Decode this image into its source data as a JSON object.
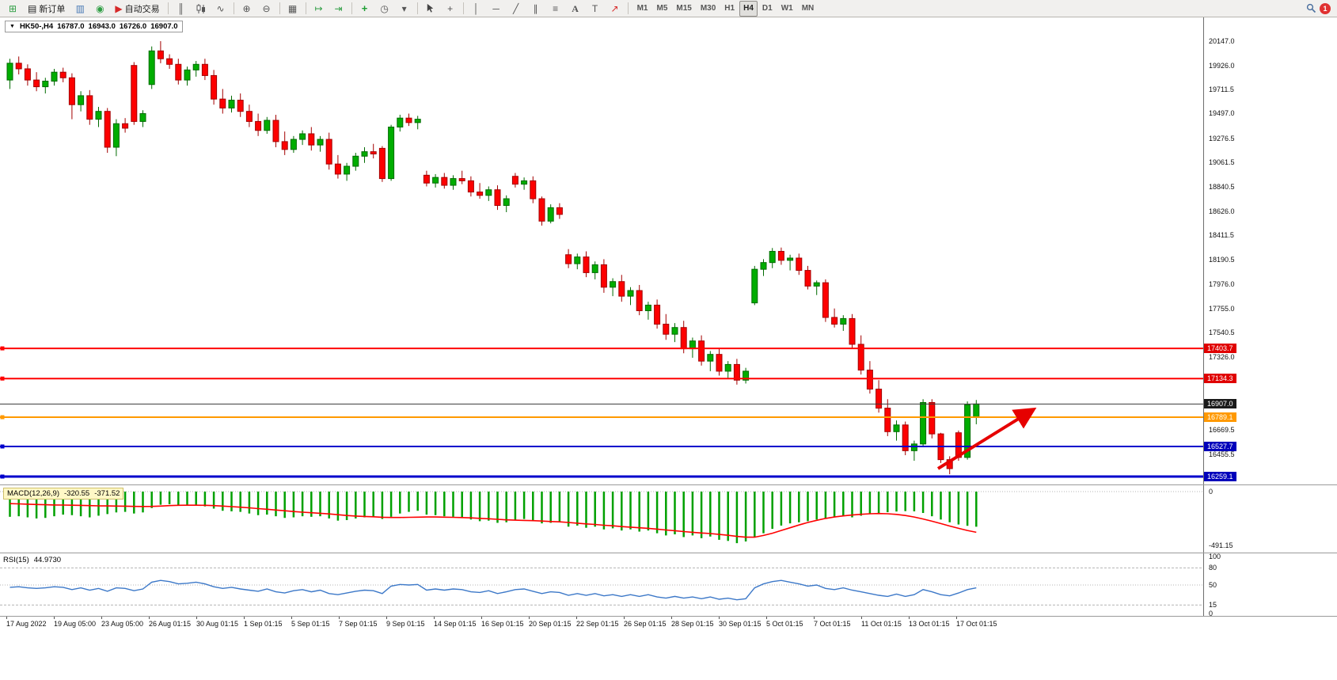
{
  "toolbar": {
    "new_order": "新订单",
    "auto_trading": "自动交易",
    "timeframes": [
      "M1",
      "M5",
      "M15",
      "M30",
      "H1",
      "H4",
      "D1",
      "W1",
      "MN"
    ],
    "active_timeframe": "H4",
    "notification_badge": "1"
  },
  "icons": {
    "chart_expand": "▼",
    "new_chart": "⊞",
    "new_order_doc": "▤",
    "charts": "▥",
    "market_watch": "◉",
    "auto_trading_play": "▶",
    "chart_bars": "║",
    "chart_line": "∿",
    "zoom_in": "⊕",
    "zoom_out": "⊖",
    "tile_windows": "▦",
    "auto_scroll": "↦",
    "chart_shift": "⇥",
    "indicators_plus": "+",
    "period": "◷",
    "template_dropdown": "▾",
    "crosshair": "+",
    "vertical_line": "│",
    "horizontal_line": "─",
    "trendline": "╱",
    "channel": "∥",
    "fibonacci": "≡",
    "text": "A",
    "text_label": "T",
    "arrows": "↗"
  },
  "chart_header": {
    "symbol": "HK50-,H4",
    "open": "16787.0",
    "high": "16943.0",
    "low": "16726.0",
    "close": "16907.0"
  },
  "indicators": {
    "macd": {
      "name": "MACD(12,26,9)",
      "value_main": "-320.55",
      "value_signal": "-371.52",
      "scale_top": "0",
      "scale_bottom": "-491.15"
    },
    "rsi": {
      "name": "RSI(15)",
      "value": "44.9730",
      "scale": [
        100,
        80,
        50,
        15,
        0
      ]
    }
  },
  "price_axis": {
    "labels": [
      20147.0,
      19926.0,
      19711.5,
      19497.0,
      19276.5,
      19061.5,
      18840.5,
      18626.0,
      18411.5,
      18190.5,
      17976.0,
      17755.0,
      17540.5,
      17326.0,
      16669.5,
      16455.5
    ],
    "badges": [
      {
        "value": 17403.7,
        "color": "#e00000"
      },
      {
        "value": 17134.3,
        "color": "#e00000"
      },
      {
        "value": 16907.0,
        "color": "#1a1a1a"
      },
      {
        "value": 16789.1,
        "color": "#ff9900"
      },
      {
        "value": 16527.7,
        "color": "#0000bb"
      },
      {
        "value": 16259.1,
        "color": "#0000bb"
      }
    ]
  },
  "time_axis": [
    "17 Aug 2022",
    "19 Aug 05:00",
    "23 Aug 05:00",
    "26 Aug 01:15",
    "30 Aug 01:15",
    "1 Sep 01:15",
    "5 Sep 01:15",
    "7 Sep 01:15",
    "9 Sep 01:15",
    "14 Sep 01:15",
    "16 Sep 01:15",
    "20 Sep 01:15",
    "22 Sep 01:15",
    "26 Sep 01:15",
    "28 Sep 01:15",
    "30 Sep 01:15",
    "5 Oct 01:15",
    "7 Oct 01:15",
    "11 Oct 01:15",
    "13 Oct 01:15",
    "17 Oct 01:15"
  ],
  "chart_data": {
    "type": "candlestick",
    "symbol": "HK50-",
    "timeframe": "H4",
    "price_range": [
      16217,
      20350
    ],
    "colors": {
      "up_fill": "#00ad00",
      "up_border": "#006b00",
      "down_fill": "#fd0000",
      "down_border": "#a30000",
      "macd_histogram": "#00a000",
      "macd_signal": "#ff0000",
      "rsi_line": "#3c78c8",
      "level_line": "#b4b4b4",
      "current_price_line": "#3a3a3a",
      "trend_arrow": "#e60000"
    },
    "candles": [
      [
        19800,
        19990,
        19720,
        19950
      ],
      [
        19950,
        20010,
        19850,
        19900
      ],
      [
        19900,
        19940,
        19750,
        19800
      ],
      [
        19800,
        19870,
        19700,
        19740
      ],
      [
        19740,
        19820,
        19680,
        19790
      ],
      [
        19790,
        19900,
        19750,
        19870
      ],
      [
        19870,
        19910,
        19780,
        19820
      ],
      [
        19820,
        19860,
        19450,
        19580
      ],
      [
        19580,
        19700,
        19520,
        19660
      ],
      [
        19660,
        19710,
        19400,
        19450
      ],
      [
        19450,
        19560,
        19380,
        19520
      ],
      [
        19520,
        19550,
        19150,
        19200
      ],
      [
        19200,
        19450,
        19120,
        19410
      ],
      [
        19410,
        19460,
        19330,
        19370
      ],
      [
        19930,
        19960,
        19400,
        19430
      ],
      [
        19430,
        19530,
        19380,
        19500
      ],
      [
        19760,
        20100,
        19720,
        20060
      ],
      [
        20060,
        20147,
        19950,
        19990
      ],
      [
        19990,
        20030,
        19900,
        19940
      ],
      [
        19940,
        19990,
        19760,
        19800
      ],
      [
        19800,
        19920,
        19750,
        19890
      ],
      [
        19890,
        19970,
        19830,
        19940
      ],
      [
        19940,
        19990,
        19800,
        19840
      ],
      [
        19840,
        19890,
        19580,
        19630
      ],
      [
        19630,
        19720,
        19500,
        19550
      ],
      [
        19550,
        19660,
        19510,
        19620
      ],
      [
        19620,
        19680,
        19470,
        19520
      ],
      [
        19520,
        19580,
        19380,
        19430
      ],
      [
        19430,
        19500,
        19300,
        19350
      ],
      [
        19350,
        19470,
        19320,
        19440
      ],
      [
        19440,
        19490,
        19200,
        19250
      ],
      [
        19250,
        19340,
        19130,
        19180
      ],
      [
        19180,
        19300,
        19150,
        19270
      ],
      [
        19270,
        19350,
        19220,
        19320
      ],
      [
        19320,
        19380,
        19170,
        19220
      ],
      [
        19220,
        19300,
        19160,
        19270
      ],
      [
        19270,
        19330,
        19000,
        19050
      ],
      [
        19050,
        19130,
        18920,
        18960
      ],
      [
        18960,
        19060,
        18900,
        19030
      ],
      [
        19030,
        19150,
        18990,
        19120
      ],
      [
        19120,
        19200,
        19060,
        19160
      ],
      [
        19160,
        19230,
        19100,
        19140
      ],
      [
        19190,
        19210,
        18890,
        18920
      ],
      [
        18920,
        19400,
        18900,
        19380
      ],
      [
        19380,
        19490,
        19340,
        19460
      ],
      [
        19460,
        19500,
        19390,
        19420
      ],
      [
        19420,
        19480,
        19360,
        19450
      ],
      [
        18950,
        18990,
        18850,
        18880
      ],
      [
        18880,
        18960,
        18840,
        18930
      ],
      [
        18930,
        18970,
        18830,
        18860
      ],
      [
        18860,
        18950,
        18820,
        18920
      ],
      [
        18920,
        18990,
        18870,
        18900
      ],
      [
        18900,
        18940,
        18760,
        18800
      ],
      [
        18800,
        18880,
        18740,
        18770
      ],
      [
        18770,
        18850,
        18720,
        18820
      ],
      [
        18820,
        18860,
        18640,
        18680
      ],
      [
        18680,
        18770,
        18620,
        18740
      ],
      [
        18940,
        18970,
        18840,
        18870
      ],
      [
        18870,
        18930,
        18820,
        18900
      ],
      [
        18900,
        18940,
        18700,
        18740
      ],
      [
        18740,
        18760,
        18500,
        18540
      ],
      [
        18540,
        18690,
        18520,
        18660
      ],
      [
        18660,
        18700,
        18560,
        18600
      ],
      [
        18240,
        18290,
        18120,
        18160
      ],
      [
        18160,
        18250,
        18110,
        18220
      ],
      [
        18220,
        18270,
        18040,
        18080
      ],
      [
        18080,
        18180,
        18020,
        18150
      ],
      [
        18150,
        18200,
        17900,
        17950
      ],
      [
        17950,
        18030,
        17870,
        18000
      ],
      [
        18000,
        18060,
        17820,
        17870
      ],
      [
        17870,
        17950,
        17790,
        17920
      ],
      [
        17920,
        17970,
        17700,
        17740
      ],
      [
        17740,
        17820,
        17660,
        17790
      ],
      [
        17790,
        17840,
        17580,
        17620
      ],
      [
        17620,
        17710,
        17480,
        17530
      ],
      [
        17530,
        17630,
        17460,
        17590
      ],
      [
        17590,
        17650,
        17360,
        17400
      ],
      [
        17400,
        17500,
        17320,
        17470
      ],
      [
        17470,
        17520,
        17250,
        17290
      ],
      [
        17290,
        17380,
        17200,
        17350
      ],
      [
        17350,
        17400,
        17160,
        17200
      ],
      [
        17200,
        17290,
        17140,
        17260
      ],
      [
        17260,
        17310,
        17080,
        17120
      ],
      [
        17120,
        17230,
        17090,
        17200
      ],
      [
        17810,
        18140,
        17790,
        18110
      ],
      [
        18110,
        18200,
        18050,
        18170
      ],
      [
        18170,
        18300,
        18120,
        18270
      ],
      [
        18270,
        18304,
        18150,
        18190
      ],
      [
        18190,
        18240,
        18100,
        18210
      ],
      [
        18210,
        18250,
        18060,
        18100
      ],
      [
        18100,
        18140,
        17930,
        17960
      ],
      [
        17960,
        18010,
        17880,
        17990
      ],
      [
        17990,
        18020,
        17640,
        17680
      ],
      [
        17680,
        17760,
        17590,
        17620
      ],
      [
        17620,
        17700,
        17560,
        17670
      ],
      [
        17670,
        17710,
        17400,
        17440
      ],
      [
        17440,
        17520,
        17170,
        17210
      ],
      [
        17210,
        17290,
        17000,
        17040
      ],
      [
        17040,
        17120,
        16830,
        16870
      ],
      [
        16870,
        16950,
        16620,
        16660
      ],
      [
        16660,
        16760,
        16580,
        16720
      ],
      [
        16720,
        16750,
        16450,
        16490
      ],
      [
        16490,
        16580,
        16400,
        16550
      ],
      [
        16550,
        16950,
        16530,
        16920
      ],
      [
        16920,
        16950,
        16600,
        16640
      ],
      [
        16640,
        16650,
        16380,
        16410
      ],
      [
        16410,
        16440,
        16280,
        16330
      ],
      [
        16650,
        16670,
        16400,
        16430
      ],
      [
        16430,
        16930,
        16410,
        16900
      ],
      [
        16787,
        16943,
        16726,
        16907
      ]
    ],
    "horizontal_lines": [
      {
        "price": 17403.7,
        "color": "#ff0000",
        "width": 2,
        "marker": true
      },
      {
        "price": 17134.3,
        "color": "#ff0000",
        "width": 2,
        "marker": true
      },
      {
        "price": 16907.0,
        "color": "#3a3a3a",
        "width": 1,
        "marker": false
      },
      {
        "price": 16789.1,
        "color": "#ff9900",
        "width": 2,
        "marker": true
      },
      {
        "price": 16527.7,
        "color": "#0000cc",
        "width": 2,
        "marker": true
      },
      {
        "price": 16259.1,
        "color": "#0000cc",
        "width": 3,
        "marker": true
      }
    ],
    "trend_arrow": {
      "from_index": 105,
      "from_price": 16330,
      "to_index": 115.5,
      "to_price": 16845
    },
    "macd": {
      "range": [
        -491.15,
        0
      ],
      "main": [
        -230,
        -225,
        -235,
        -245,
        -240,
        -225,
        -210,
        -215,
        -225,
        -235,
        -220,
        -205,
        -190,
        -185,
        -200,
        -190,
        -150,
        -120,
        -115,
        -125,
        -130,
        -125,
        -135,
        -155,
        -175,
        -180,
        -185,
        -200,
        -215,
        -210,
        -225,
        -240,
        -235,
        -225,
        -230,
        -225,
        -245,
        -265,
        -260,
        -245,
        -235,
        -230,
        -250,
        -230,
        -200,
        -185,
        -175,
        -210,
        -215,
        -225,
        -230,
        -235,
        -255,
        -270,
        -265,
        -285,
        -280,
        -260,
        -250,
        -265,
        -290,
        -285,
        -280,
        -320,
        -310,
        -330,
        -320,
        -345,
        -335,
        -355,
        -345,
        -365,
        -355,
        -380,
        -400,
        -390,
        -415,
        -400,
        -425,
        -410,
        -440,
        -450,
        -470,
        -455,
        -415,
        -380,
        -340,
        -310,
        -290,
        -280,
        -270,
        -255,
        -245,
        -235,
        -220,
        -235,
        -220,
        -205,
        -195,
        -188,
        -182,
        -178,
        -180,
        -195,
        -225,
        -255,
        -280,
        -300,
        -312,
        -320.55
      ],
      "signal": [
        -110,
        -112,
        -115,
        -118,
        -120,
        -122,
        -123,
        -124,
        -126,
        -128,
        -130,
        -131,
        -132,
        -133,
        -135,
        -136,
        -135,
        -132,
        -128,
        -125,
        -124,
        -124,
        -125,
        -128,
        -132,
        -137,
        -142,
        -148,
        -155,
        -161,
        -168,
        -175,
        -182,
        -188,
        -193,
        -198,
        -204,
        -211,
        -218,
        -223,
        -227,
        -230,
        -234,
        -236,
        -236,
        -235,
        -233,
        -232,
        -232,
        -233,
        -235,
        -237,
        -240,
        -244,
        -248,
        -253,
        -258,
        -261,
        -263,
        -265,
        -269,
        -273,
        -276,
        -282,
        -288,
        -295,
        -300,
        -307,
        -312,
        -319,
        -324,
        -330,
        -335,
        -342,
        -350,
        -357,
        -365,
        -371,
        -378,
        -383,
        -391,
        -399,
        -409,
        -416,
        -416,
        -400,
        -380,
        -355,
        -330,
        -305,
        -282,
        -262,
        -245,
        -232,
        -222,
        -214,
        -207,
        -202,
        -200,
        -202,
        -208,
        -218,
        -232,
        -250,
        -270,
        -292,
        -314,
        -335,
        -355,
        -371.52
      ]
    },
    "rsi": {
      "range": [
        0,
        100
      ],
      "levels": [
        80,
        50,
        15
      ],
      "values": [
        46,
        47,
        45,
        44,
        45,
        47,
        46,
        42,
        45,
        41,
        44,
        39,
        45,
        44,
        40,
        43,
        55,
        58,
        56,
        52,
        53,
        55,
        52,
        47,
        44,
        46,
        43,
        41,
        39,
        43,
        38,
        36,
        40,
        42,
        38,
        41,
        35,
        33,
        36,
        39,
        41,
        40,
        35,
        48,
        51,
        50,
        51,
        41,
        43,
        41,
        43,
        42,
        38,
        37,
        40,
        35,
        38,
        42,
        43,
        39,
        35,
        38,
        37,
        32,
        35,
        32,
        35,
        31,
        33,
        30,
        33,
        30,
        33,
        29,
        27,
        30,
        27,
        29,
        26,
        29,
        25,
        27,
        24,
        26,
        45,
        52,
        56,
        58,
        55,
        52,
        48,
        50,
        44,
        42,
        45,
        41,
        38,
        35,
        32,
        30,
        34,
        30,
        33,
        42,
        38,
        33,
        31,
        36,
        42,
        44.97
      ]
    }
  }
}
